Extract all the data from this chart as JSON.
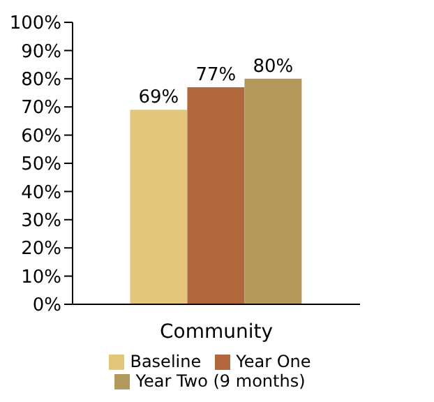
{
  "chart_data": {
    "type": "bar",
    "categories": [
      "Community"
    ],
    "series": [
      {
        "name": "Baseline",
        "color": "#e3c67a",
        "values": [
          69
        ],
        "value_labels": [
          "69%"
        ]
      },
      {
        "name": "Year One",
        "color": "#b2683c",
        "values": [
          77
        ],
        "value_labels": [
          "77%"
        ]
      },
      {
        "name": "Year Two (9 months)",
        "color": "#b39a5c",
        "values": [
          80
        ],
        "value_labels": [
          "80%"
        ]
      }
    ],
    "ylim": [
      0,
      100
    ],
    "yticks": [
      {
        "value": 0,
        "label": "0%"
      },
      {
        "value": 10,
        "label": "10%"
      },
      {
        "value": 20,
        "label": "20%"
      },
      {
        "value": 30,
        "label": "30%"
      },
      {
        "value": 40,
        "label": "40%"
      },
      {
        "value": 50,
        "label": "50%"
      },
      {
        "value": 60,
        "label": "60%"
      },
      {
        "value": 70,
        "label": "70%"
      },
      {
        "value": 80,
        "label": "80%"
      },
      {
        "value": 90,
        "label": "90%"
      },
      {
        "value": 100,
        "label": "100%"
      }
    ],
    "grid": false,
    "legend": "bottom"
  }
}
